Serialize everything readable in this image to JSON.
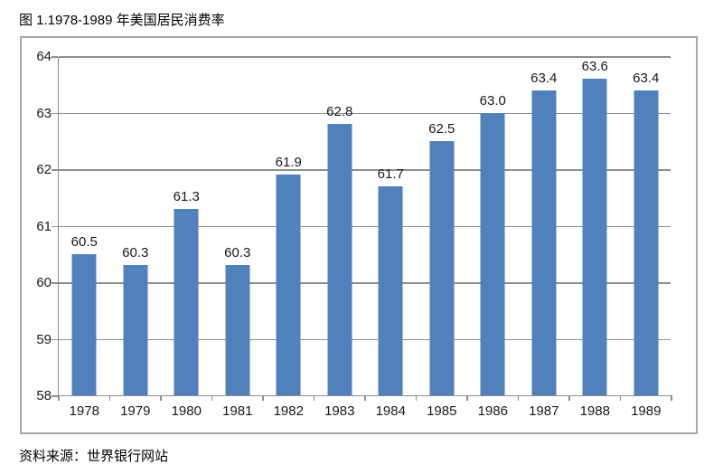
{
  "title": "图 1.1978-1989 年美国居民消费率",
  "source": "资料来源：世界银行网站",
  "chart_data": {
    "type": "bar",
    "title": "图 1.1978-1989 年美国居民消费率",
    "categories": [
      "1978",
      "1979",
      "1980",
      "1981",
      "1982",
      "1983",
      "1984",
      "1985",
      "1986",
      "1987",
      "1988",
      "1989"
    ],
    "values": [
      60.5,
      60.3,
      61.3,
      60.3,
      61.9,
      62.8,
      61.7,
      62.5,
      63.0,
      63.4,
      63.6,
      63.4
    ],
    "value_labels": [
      "60.5",
      "60.3",
      "61.3",
      "60.3",
      "61.9",
      "62.8",
      "61.7",
      "62.5",
      "63.0",
      "63.4",
      "63.6",
      "63.4"
    ],
    "xlabel": "",
    "ylabel": "",
    "ylim": [
      58,
      64
    ],
    "yticks": [
      58,
      59,
      60,
      61,
      62,
      63,
      64
    ],
    "grid": true,
    "legend": false,
    "data_labels_on": true,
    "colors": {
      "bar": "#4f81bd",
      "gridline": "#8e8e8e",
      "axis": "#8e8e8e",
      "chart_border": "#a6a6a6",
      "label_text": "#1a1a1a",
      "title_text": "#000000"
    }
  }
}
